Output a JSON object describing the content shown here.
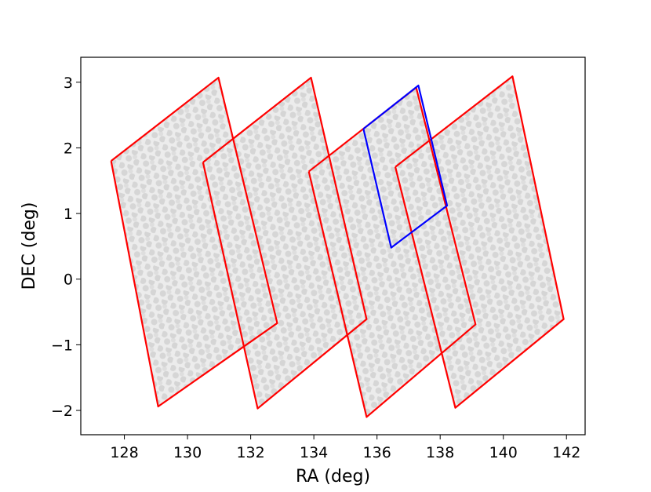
{
  "chart_data": {
    "type": "polygon",
    "xlabel": "RA (deg)",
    "ylabel": "DEC (deg)",
    "xlim": [
      126.62,
      142.59
    ],
    "ylim": [
      -2.37,
      3.38
    ],
    "xticks": [
      128,
      130,
      132,
      134,
      136,
      138,
      140,
      142
    ],
    "yticks": [
      {
        "value": -2,
        "label": "−2"
      },
      {
        "value": -1,
        "label": "−1"
      },
      0,
      1,
      2,
      3
    ],
    "series": [
      {
        "color": "#ff0000",
        "x": [
          127.58,
          130.98,
          132.84,
          129.07,
          127.58
        ],
        "y": [
          1.8,
          3.07,
          -0.67,
          -1.94,
          1.8
        ]
      },
      {
        "color": "#ff0000",
        "x": [
          130.49,
          133.91,
          135.67,
          132.22,
          130.49
        ],
        "y": [
          1.78,
          3.07,
          -0.61,
          -1.97,
          1.78
        ]
      },
      {
        "color": "#ff0000",
        "x": [
          133.84,
          137.24,
          139.12,
          135.67,
          133.84
        ],
        "y": [
          1.64,
          2.92,
          -0.69,
          -2.1,
          1.64
        ]
      },
      {
        "color": "#ff0000",
        "x": [
          136.58,
          140.29,
          141.91,
          138.48,
          136.58
        ],
        "y": [
          1.71,
          3.09,
          -0.61,
          -1.96,
          1.71
        ]
      },
      {
        "color": "#0000ff",
        "x": [
          135.57,
          137.31,
          138.22,
          136.45,
          135.57
        ],
        "y": [
          2.29,
          2.95,
          1.12,
          0.48,
          2.29
        ]
      }
    ]
  }
}
